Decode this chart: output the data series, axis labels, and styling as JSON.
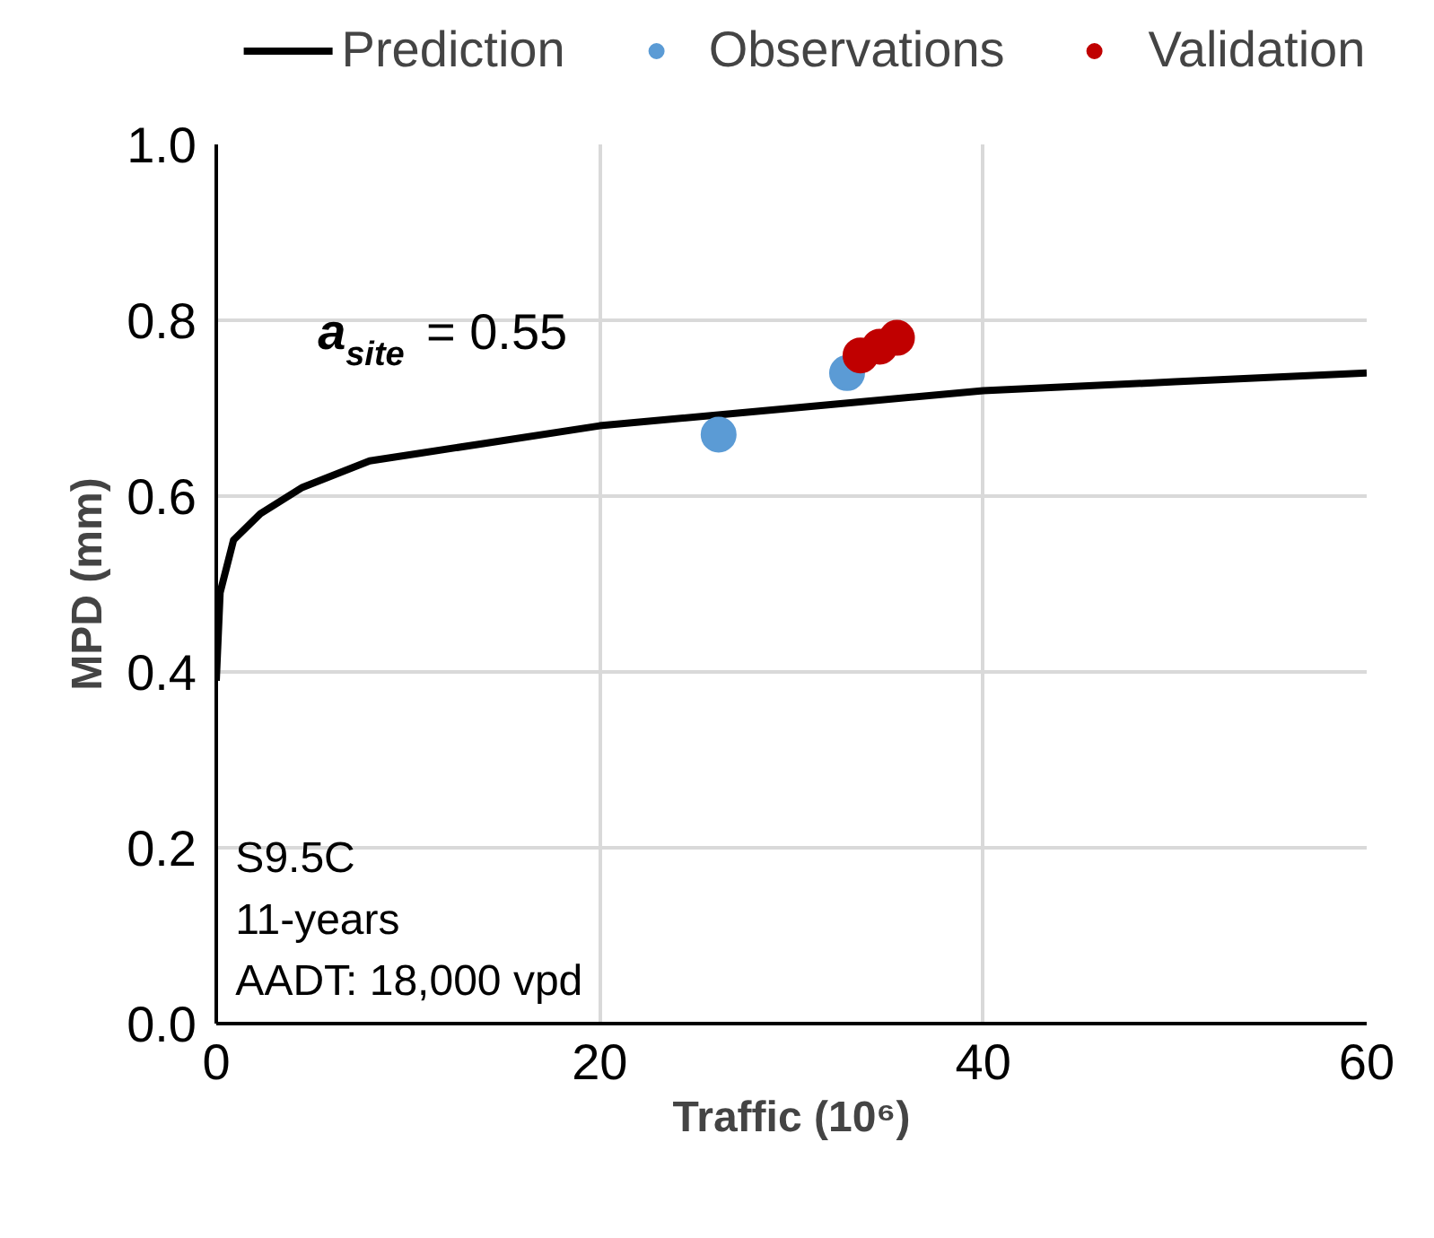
{
  "chart_data": {
    "type": "scatter",
    "xlabel": "Traffic (10⁶)",
    "ylabel": "MPD (mm)",
    "xlim": [
      0,
      60
    ],
    "ylim": [
      0,
      1
    ],
    "xticks": [
      0,
      20,
      40,
      60
    ],
    "yticks": [
      {
        "value": 0,
        "label": "0.0"
      },
      {
        "value": 0.2,
        "label": "0.2"
      },
      {
        "value": 0.4,
        "label": "0.4"
      },
      {
        "value": 0.6,
        "label": "0.6"
      },
      {
        "value": 0.8,
        "label": "0.8"
      },
      {
        "value": 1,
        "label": "1.0"
      }
    ],
    "grid": true,
    "legend": "top",
    "series": [
      {
        "name": "Prediction",
        "type": "line",
        "color": "#000000",
        "x": [
          0,
          0.2,
          0.9,
          2.3,
          4.5,
          8,
          14,
          20,
          30,
          40,
          50,
          60
        ],
        "values": [
          0.39,
          0.49,
          0.55,
          0.58,
          0.61,
          0.64,
          0.66,
          0.68,
          0.7,
          0.72,
          0.73,
          0.74
        ]
      },
      {
        "name": "Observations",
        "marker": "circle",
        "color": "#5b9bd5",
        "x": [
          26.2,
          32.9
        ],
        "values": [
          0.67,
          0.74
        ]
      },
      {
        "name": "Validation",
        "marker": "circle",
        "color": "#c00000",
        "x": [
          33.6,
          34.6,
          35.5
        ],
        "values": [
          0.76,
          0.77,
          0.78
        ]
      }
    ],
    "annotations": [
      "a$_{site}$ = 0.55",
      "S9.5C",
      "11-years",
      "AADT: 18,000 vpd"
    ]
  }
}
